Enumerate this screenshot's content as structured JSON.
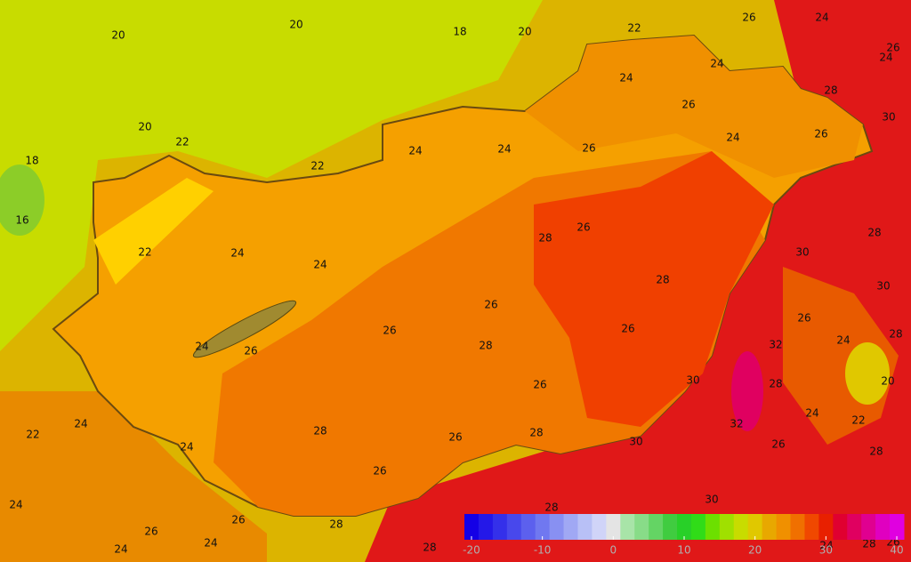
{
  "map": {
    "contour_labels": [
      20,
      20,
      18,
      20,
      22,
      26,
      24,
      26,
      24,
      24,
      24,
      28,
      30,
      20,
      22,
      18,
      16,
      22,
      24,
      24,
      26,
      26,
      24,
      26,
      28,
      26,
      28,
      22,
      24,
      24,
      30,
      28,
      30,
      26,
      26,
      24,
      26,
      26,
      28,
      26,
      32,
      24,
      28,
      30,
      26,
      28,
      20,
      24,
      22,
      24,
      22,
      32,
      24,
      28,
      26,
      28,
      30,
      26,
      28,
      26,
      30,
      28,
      24,
      26,
      28,
      24,
      26,
      24,
      28,
      24,
      28,
      26
    ],
    "colorbar": {
      "range": [
        -20,
        40
      ],
      "ticks": [
        -20,
        -10,
        0,
        10,
        20,
        30,
        40
      ],
      "colors": [
        "#1400e6",
        "#2418e8",
        "#3430ea",
        "#4848ec",
        "#5c60ee",
        "#7078f0",
        "#8890f2",
        "#a0a8f4",
        "#b8c0f6",
        "#d0d4f8",
        "#e4e4e4",
        "#a8e4a8",
        "#88dc88",
        "#64d464",
        "#40cc40",
        "#28d028",
        "#30dc18",
        "#6ce000",
        "#a0e000",
        "#c8dc00",
        "#e0c800",
        "#e8a800",
        "#f09000",
        "#f07000",
        "#f04800",
        "#e82000",
        "#e00030",
        "#e00060",
        "#e00090",
        "#e000c0",
        "#e000e0"
      ]
    }
  }
}
